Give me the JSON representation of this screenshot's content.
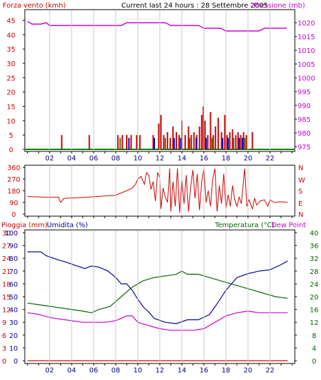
{
  "header": {
    "title": "Current last 24 hours : 28 Settembre 2005",
    "wind_label": "Forza vento (kmh)",
    "pressure_label": "Pressione (mb)"
  },
  "wind_dir_labels": [
    "N",
    "W",
    "S",
    "E",
    "N"
  ],
  "bottom_header": {
    "rain_label": "Pioggia (mm)",
    "humidity_label": "Umidita (%)",
    "temp_label": "Temperatura (°C)",
    "dew_label": "Dew Point"
  },
  "colors": {
    "wind": "#cc0000",
    "gust": "#0000cc",
    "gust2": "#666600",
    "pressure": "#cc00cc",
    "baseline": "#008000",
    "direction": "#cc0000",
    "humidity": "#000099",
    "temperature": "#006600",
    "dewpoint": "#cc00cc",
    "rain": "#cc0000",
    "grid": "#c8c8c8",
    "text_left": "#cc0000",
    "text_pressure": "#cc00cc",
    "text_humidity": "#000099",
    "text_temp": "#006600"
  },
  "chart_data": [
    {
      "type": "bar",
      "name": "wind",
      "x_ticks": [
        "02",
        "04",
        "06",
        "08",
        "10",
        "12",
        "14",
        "16",
        "18",
        "20",
        "22"
      ],
      "xlim": [
        0,
        24
      ],
      "y_ticks": [
        0,
        5,
        10,
        15,
        20,
        25,
        30,
        35,
        40,
        45
      ],
      "ylim": [
        0,
        48
      ],
      "pressure_ticks": [
        975,
        980,
        985,
        990,
        995,
        1000,
        1005,
        1010,
        1015,
        1020
      ],
      "pressure_lim": [
        974,
        1024
      ],
      "wind_bars": [
        [
          3.1,
          5
        ],
        [
          5.6,
          5
        ],
        [
          8.2,
          5
        ],
        [
          8.6,
          5
        ],
        [
          9.0,
          5
        ],
        [
          9.4,
          5
        ],
        [
          9.9,
          5
        ],
        [
          10.2,
          5
        ],
        [
          11.4,
          5
        ],
        [
          11.9,
          9
        ],
        [
          12.1,
          12
        ],
        [
          12.35,
          5
        ],
        [
          12.7,
          6
        ],
        [
          12.95,
          4
        ],
        [
          13.2,
          8
        ],
        [
          13.5,
          6
        ],
        [
          13.75,
          5
        ],
        [
          14.0,
          10
        ],
        [
          14.3,
          5
        ],
        [
          14.6,
          8
        ],
        [
          14.85,
          5
        ],
        [
          15.1,
          6
        ],
        [
          15.35,
          5
        ],
        [
          15.6,
          8
        ],
        [
          15.8,
          12
        ],
        [
          15.95,
          15
        ],
        [
          16.1,
          10
        ],
        [
          16.35,
          5
        ],
        [
          16.6,
          13
        ],
        [
          16.85,
          5
        ],
        [
          17.05,
          8
        ],
        [
          17.3,
          11
        ],
        [
          17.6,
          6
        ],
        [
          17.9,
          12
        ],
        [
          18.1,
          5
        ],
        [
          18.35,
          6
        ],
        [
          18.6,
          7
        ],
        [
          18.9,
          5
        ],
        [
          19.1,
          6
        ],
        [
          19.35,
          5
        ],
        [
          19.6,
          6
        ],
        [
          19.85,
          5
        ],
        [
          20.4,
          6
        ]
      ],
      "gust_bars": [
        [
          8.4,
          4
        ],
        [
          9.2,
          4
        ],
        [
          11.5,
          4
        ],
        [
          12.5,
          4
        ],
        [
          13.3,
          4
        ],
        [
          13.9,
          4
        ],
        [
          14.7,
          4
        ],
        [
          15.3,
          4
        ],
        [
          16.2,
          4
        ],
        [
          16.75,
          4
        ],
        [
          17.7,
          4
        ],
        [
          18.2,
          4
        ],
        [
          18.7,
          4
        ],
        [
          19.2,
          4
        ],
        [
          19.5,
          4
        ],
        [
          19.7,
          4
        ]
      ],
      "pressure": [
        [
          0,
          1020.5
        ],
        [
          0.4,
          1019.5
        ],
        [
          1.2,
          1019.5
        ],
        [
          1.7,
          1020
        ],
        [
          2.0,
          1019
        ],
        [
          8.5,
          1019
        ],
        [
          9.0,
          1020
        ],
        [
          12.5,
          1020
        ],
        [
          13.0,
          1019
        ],
        [
          15.5,
          1019
        ],
        [
          16.0,
          1018
        ],
        [
          17.5,
          1018
        ],
        [
          18.0,
          1017
        ],
        [
          21.0,
          1017
        ],
        [
          21.5,
          1018
        ],
        [
          23.5,
          1018
        ]
      ]
    },
    {
      "type": "line",
      "name": "direction",
      "y_ticks": [
        0,
        90,
        180,
        270,
        360
      ],
      "ylim": [
        0,
        360
      ],
      "values": [
        [
          0,
          135
        ],
        [
          1.5,
          130
        ],
        [
          2.8,
          130
        ],
        [
          3.0,
          90
        ],
        [
          3.3,
          120
        ],
        [
          5.5,
          130
        ],
        [
          8.0,
          145
        ],
        [
          9.0,
          180
        ],
        [
          9.5,
          200
        ],
        [
          9.8,
          230
        ],
        [
          10.0,
          270
        ],
        [
          10.3,
          290
        ],
        [
          10.6,
          230
        ],
        [
          10.8,
          320
        ],
        [
          11.0,
          300
        ],
        [
          11.2,
          190
        ],
        [
          11.4,
          250
        ],
        [
          11.6,
          100
        ],
        [
          11.8,
          320
        ],
        [
          12.0,
          280
        ],
        [
          12.1,
          40
        ],
        [
          12.3,
          200
        ],
        [
          12.5,
          130
        ],
        [
          12.7,
          90
        ],
        [
          12.9,
          350
        ],
        [
          13.0,
          20
        ],
        [
          13.2,
          250
        ],
        [
          13.4,
          60
        ],
        [
          13.6,
          350
        ],
        [
          13.8,
          10
        ],
        [
          14.0,
          270
        ],
        [
          14.2,
          80
        ],
        [
          14.4,
          300
        ],
        [
          14.6,
          20
        ],
        [
          14.8,
          210
        ],
        [
          15.0,
          340
        ],
        [
          15.2,
          120
        ],
        [
          15.4,
          310
        ],
        [
          15.6,
          30
        ],
        [
          15.8,
          250
        ],
        [
          16.0,
          350
        ],
        [
          16.2,
          90
        ],
        [
          16.4,
          180
        ],
        [
          16.6,
          60
        ],
        [
          16.8,
          270
        ],
        [
          17.0,
          350
        ],
        [
          17.2,
          20
        ],
        [
          17.4,
          220
        ],
        [
          17.6,
          80
        ],
        [
          17.8,
          310
        ],
        [
          18.0,
          40
        ],
        [
          18.2,
          150
        ],
        [
          18.4,
          60
        ],
        [
          18.6,
          220
        ],
        [
          18.8,
          110
        ],
        [
          19.0,
          60
        ],
        [
          19.2,
          130
        ],
        [
          19.4,
          80
        ],
        [
          19.7,
          350
        ],
        [
          19.9,
          60
        ],
        [
          20.1,
          110
        ],
        [
          20.4,
          40
        ],
        [
          20.6,
          120
        ],
        [
          20.8,
          70
        ],
        [
          21.1,
          100
        ],
        [
          21.5,
          110
        ],
        [
          21.8,
          60
        ],
        [
          22.0,
          110
        ],
        [
          22.4,
          90
        ],
        [
          23.0,
          95
        ],
        [
          23.6,
          90
        ]
      ]
    },
    {
      "type": "line",
      "name": "weather",
      "rain_ticks": [
        0,
        3,
        6,
        9,
        12,
        15,
        18,
        21,
        24,
        27,
        30
      ],
      "humidity_ticks": [
        0,
        10,
        20,
        30,
        40,
        50,
        60,
        70,
        80,
        90,
        100
      ],
      "temp_ticks": [
        0,
        4,
        8,
        12,
        16,
        20,
        24,
        28,
        32,
        36,
        40
      ],
      "humidity": [
        [
          0,
          85
        ],
        [
          1.2,
          85
        ],
        [
          1.7,
          82
        ],
        [
          2.7,
          79
        ],
        [
          3.5,
          77
        ],
        [
          4.5,
          74
        ],
        [
          5.2,
          72
        ],
        [
          5.8,
          74
        ],
        [
          6.5,
          73
        ],
        [
          7.3,
          70
        ],
        [
          8.0,
          65
        ],
        [
          8.5,
          60
        ],
        [
          9.0,
          60
        ],
        [
          9.5,
          55
        ],
        [
          10.0,
          48
        ],
        [
          10.5,
          42
        ],
        [
          11.0,
          38
        ],
        [
          11.5,
          33
        ],
        [
          12.5,
          30
        ],
        [
          13.5,
          29
        ],
        [
          14.5,
          32
        ],
        [
          15.5,
          32
        ],
        [
          16.5,
          36
        ],
        [
          17.0,
          42
        ],
        [
          18.0,
          55
        ],
        [
          19.0,
          65
        ],
        [
          20.0,
          68
        ],
        [
          21.0,
          70
        ],
        [
          22.0,
          71
        ],
        [
          23.0,
          75
        ],
        [
          23.6,
          78
        ]
      ],
      "temperature": [
        [
          0,
          18
        ],
        [
          1.0,
          17.5
        ],
        [
          2.0,
          17
        ],
        [
          3.0,
          16.5
        ],
        [
          4.0,
          16
        ],
        [
          5.0,
          15.5
        ],
        [
          5.8,
          15
        ],
        [
          6.5,
          16
        ],
        [
          7.5,
          17
        ],
        [
          8.5,
          20
        ],
        [
          9.5,
          23
        ],
        [
          10.5,
          25
        ],
        [
          11.5,
          26
        ],
        [
          12.5,
          26.5
        ],
        [
          13.5,
          27
        ],
        [
          14.0,
          28
        ],
        [
          14.5,
          27
        ],
        [
          15.5,
          27
        ],
        [
          16.5,
          26
        ],
        [
          17.5,
          25
        ],
        [
          18.5,
          24
        ],
        [
          19.5,
          23
        ],
        [
          20.5,
          22
        ],
        [
          21.5,
          21
        ],
        [
          22.5,
          20
        ],
        [
          23.6,
          19.5
        ]
      ],
      "dewpoint": [
        [
          0,
          15
        ],
        [
          1.0,
          14.5
        ],
        [
          2.0,
          13.5
        ],
        [
          3.0,
          13
        ],
        [
          4.0,
          12.5
        ],
        [
          5.0,
          12
        ],
        [
          6.0,
          12
        ],
        [
          7.0,
          12
        ],
        [
          8.0,
          12.5
        ],
        [
          9.0,
          14
        ],
        [
          9.5,
          14
        ],
        [
          10.0,
          12
        ],
        [
          11.0,
          11
        ],
        [
          12.0,
          10
        ],
        [
          13.0,
          9.5
        ],
        [
          14.0,
          9.5
        ],
        [
          15.0,
          9.5
        ],
        [
          16.0,
          10
        ],
        [
          17.0,
          12
        ],
        [
          18.0,
          14
        ],
        [
          19.0,
          15
        ],
        [
          20.0,
          15.5
        ],
        [
          21.0,
          15
        ],
        [
          22.0,
          15
        ],
        [
          23.6,
          15
        ]
      ],
      "rain": [
        [
          0,
          0
        ],
        [
          23.6,
          0
        ]
      ]
    }
  ]
}
